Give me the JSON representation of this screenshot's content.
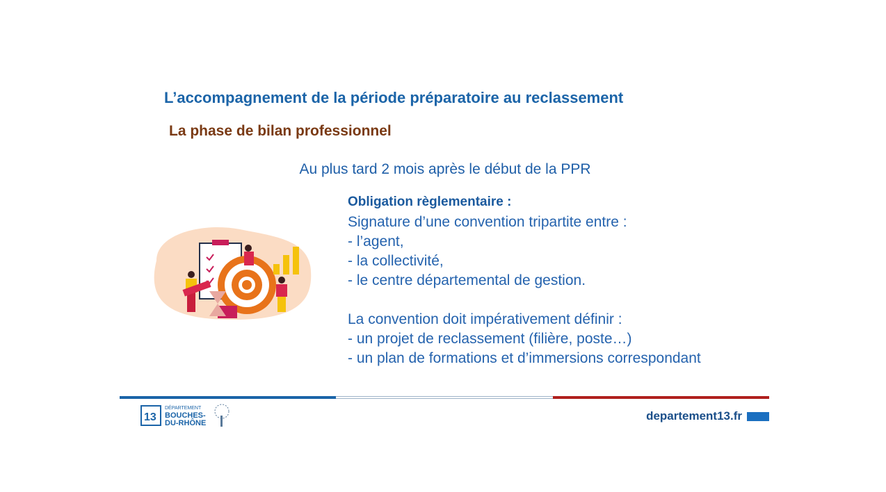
{
  "slide": {
    "title": "L’accompagnement de la période préparatoire au reclassement",
    "subtitle": "La phase de bilan professionnel",
    "timing": "Au plus tard 2 mois après le début de la PPR",
    "obligation_heading": "Obligation règlementaire :",
    "body_lines": [
      "Signature d’une convention tripartite entre :",
      "-  l’agent,",
      "-  la collectivité,",
      "-  le centre départemental de gestion.",
      "La convention doit impérativement définir :",
      "- un projet de reclassement (filière, poste…)",
      "- un plan de formations et d’immersions correspondant"
    ]
  },
  "footer": {
    "logo_text": [
      "DÉPARTEMENT",
      "BOUCHES-",
      "DU-RHÔNE",
      "13"
    ],
    "url": "departement13.fr",
    "colors": {
      "blue": "#1b64a8",
      "white": "#ffffff",
      "red": "#b0201e"
    }
  }
}
